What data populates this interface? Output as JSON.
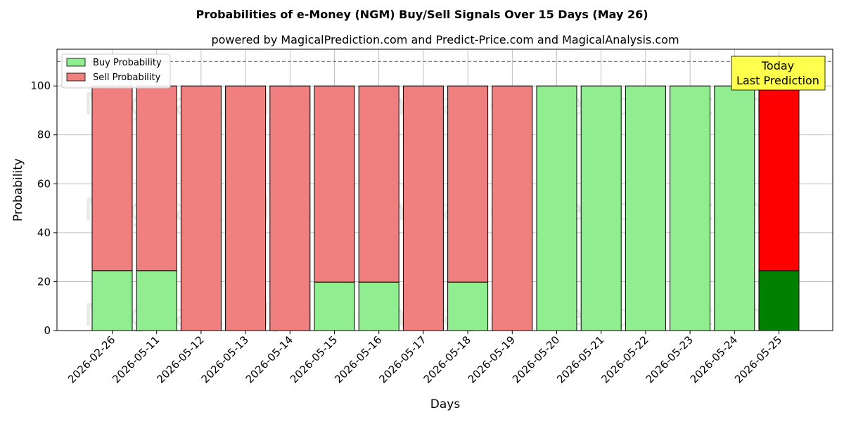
{
  "chart_data": {
    "type": "bar",
    "stacked": true,
    "title": "Probabilities of e-Money (NGM) Buy/Sell Signals Over 15 Days (May 26)",
    "subtitle": "powered by MagicalPrediction.com and Predict-Price.com and MagicalAnalysis.com",
    "xlabel": "Days",
    "ylabel": "Probability",
    "ylim": [
      0,
      115
    ],
    "yticks": [
      0,
      20,
      40,
      60,
      80,
      100
    ],
    "reference_line": 110,
    "grid": true,
    "legend_position": "top-left",
    "categories": [
      "2026-02-26",
      "2026-05-11",
      "2026-05-12",
      "2026-05-13",
      "2026-05-14",
      "2026-05-15",
      "2026-05-16",
      "2026-05-17",
      "2026-05-18",
      "2026-05-19",
      "2026-05-20",
      "2026-05-21",
      "2026-05-22",
      "2026-05-23",
      "2026-05-24",
      "2026-05-25"
    ],
    "series": [
      {
        "name": "Buy Probability",
        "color": "#90ee90",
        "values": [
          24.5,
          24.5,
          0,
          0,
          0,
          19.8,
          19.8,
          0,
          19.8,
          0,
          100,
          100,
          100,
          100,
          100,
          24.5
        ]
      },
      {
        "name": "Sell Probability",
        "color": "#f08080",
        "values": [
          75.5,
          75.5,
          100,
          100,
          100,
          80.2,
          80.2,
          100,
          80.2,
          100,
          0,
          0,
          0,
          0,
          0,
          75.5
        ]
      }
    ],
    "highlight": {
      "index": 15,
      "buy_color": "#008000",
      "sell_color": "#ff0000"
    },
    "annotation": {
      "lines": [
        "Today",
        "Last Prediction"
      ],
      "background": "#ffff4d"
    },
    "watermarks": [
      "MagicalAnalysis.com",
      "MagicalPrediction.com"
    ]
  }
}
